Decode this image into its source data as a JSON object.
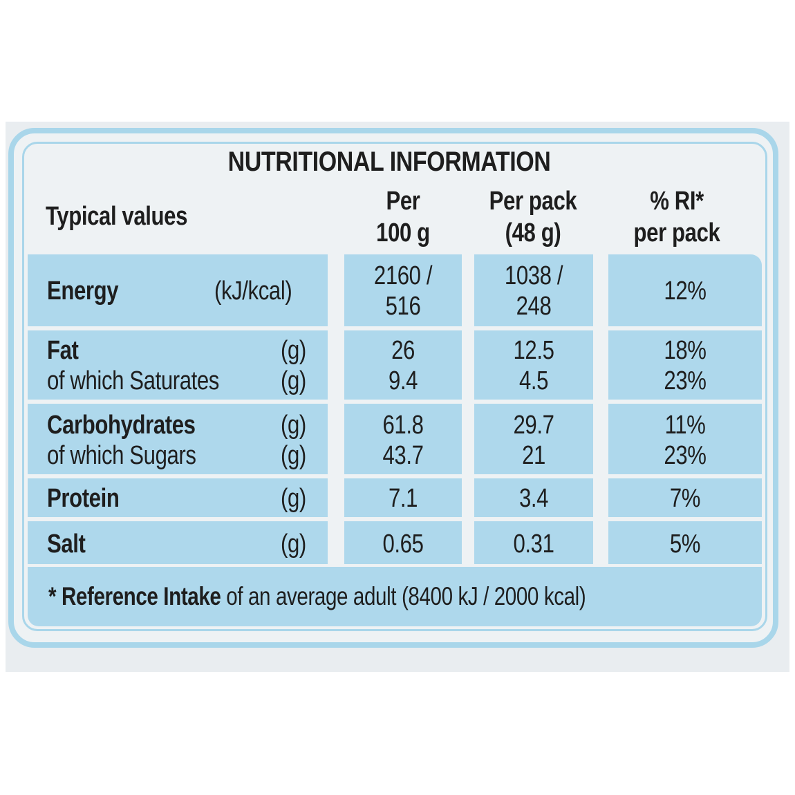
{
  "title": "NUTRITIONAL INFORMATION",
  "columns": {
    "typical": "Typical values",
    "per100": [
      "Per",
      "100 g"
    ],
    "perpack": [
      "Per pack",
      "(48 g)"
    ],
    "ri": [
      "% RI*",
      "per pack"
    ]
  },
  "rows": [
    {
      "lines": [
        {
          "label": "Energy",
          "unit": "(kJ/kcal)",
          "per100": "2160 /",
          "perpack": "1038 /",
          "ri": "12%"
        },
        {
          "label": "",
          "unit": "",
          "per100": "516",
          "perpack": "248",
          "ri": ""
        }
      ]
    },
    {
      "lines": [
        {
          "label": "Fat",
          "unit": "(g)",
          "per100": "26",
          "perpack": "12.5",
          "ri": "18%"
        },
        {
          "label": "of which Saturates",
          "unit": "(g)",
          "per100": "9.4",
          "perpack": "4.5",
          "ri": "23%"
        }
      ]
    },
    {
      "lines": [
        {
          "label": "Carbohydrates",
          "unit": "(g)",
          "per100": "61.8",
          "perpack": "29.7",
          "ri": "11%"
        },
        {
          "label": "of which Sugars",
          "unit": "(g)",
          "per100": "43.7",
          "perpack": "21",
          "ri": "23%"
        }
      ]
    },
    {
      "lines": [
        {
          "label": "Protein",
          "unit": "(g)",
          "per100": "7.1",
          "perpack": "3.4",
          "ri": "7%"
        }
      ]
    },
    {
      "lines": [
        {
          "label": "Salt",
          "unit": "(g)",
          "per100": "0.65",
          "perpack": "0.31",
          "ri": "5%"
        }
      ]
    }
  ],
  "footnote": {
    "bold": "* Reference Intake",
    "normal": " of an average adult (8400 kJ / 2000 kcal)"
  },
  "colors": {
    "cell_blue": "#aed8ec",
    "border_blue": "#a9d6ea",
    "background": "#eef2f4"
  }
}
